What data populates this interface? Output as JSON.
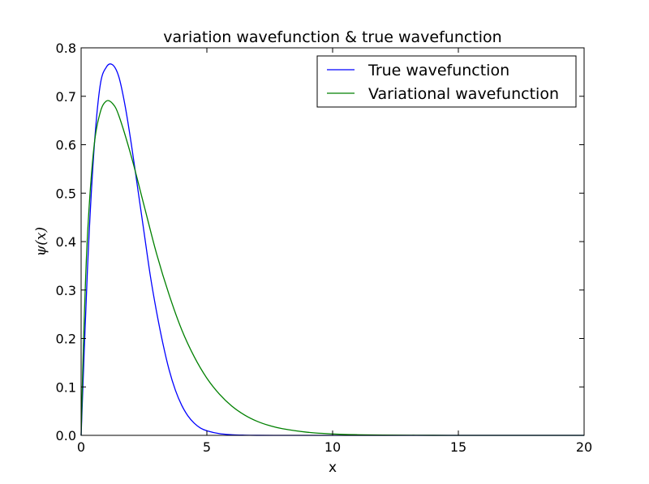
{
  "chart_data": {
    "type": "line",
    "title": "variation wavefunction & true wavefunction",
    "xlabel": "x",
    "ylabel": "ψ(x)",
    "xlim": [
      0,
      20
    ],
    "ylim": [
      0,
      0.8
    ],
    "xticks": [
      0,
      5,
      10,
      15,
      20
    ],
    "xtick_labels": [
      "0",
      "5",
      "10",
      "15",
      "20"
    ],
    "yticks": [
      0.0,
      0.1,
      0.2,
      0.3,
      0.4,
      0.5,
      0.6,
      0.7,
      0.8
    ],
    "ytick_labels": [
      "0.0",
      "0.1",
      "0.2",
      "0.3",
      "0.4",
      "0.5",
      "0.6",
      "0.7",
      "0.8"
    ],
    "legend_position": "top-right",
    "grid": false,
    "series": [
      {
        "name": "True wavefunction",
        "color": "#0000ff",
        "x": [
          0,
          0.25,
          0.5,
          0.75,
          1.0,
          1.25,
          1.5,
          1.75,
          2.0,
          2.25,
          2.5,
          2.75,
          3.0,
          3.25,
          3.5,
          3.75,
          4.0,
          4.25,
          4.5,
          4.75,
          5.0,
          5.5,
          6.0,
          6.5,
          7.0,
          8.0,
          9.0,
          10.0,
          12.0,
          15.0,
          20.0
        ],
        "y": [
          0.0,
          0.34,
          0.58,
          0.72,
          0.76,
          0.765,
          0.74,
          0.68,
          0.6,
          0.51,
          0.42,
          0.33,
          0.255,
          0.19,
          0.135,
          0.093,
          0.062,
          0.04,
          0.025,
          0.015,
          0.0095,
          0.0035,
          0.0012,
          0.0004,
          0.00013,
          1e-05,
          0.0,
          0.0,
          0.0,
          0.0,
          0.0
        ]
      },
      {
        "name": "Variational wavefunction",
        "color": "#008000",
        "x": [
          0,
          0.1,
          0.25,
          0.5,
          0.75,
          1.0,
          1.25,
          1.5,
          2.0,
          2.5,
          3.0,
          3.5,
          4.0,
          4.5,
          5.0,
          5.5,
          6.0,
          6.5,
          7.0,
          7.5,
          8.0,
          9.0,
          10.0,
          11.0,
          12.0,
          14.0,
          16.0,
          20.0
        ],
        "y": [
          0.0,
          0.2,
          0.41,
          0.59,
          0.665,
          0.69,
          0.685,
          0.66,
          0.575,
          0.475,
          0.375,
          0.29,
          0.218,
          0.162,
          0.118,
          0.085,
          0.06,
          0.042,
          0.029,
          0.02,
          0.0138,
          0.0064,
          0.0029,
          0.0013,
          0.0006,
          0.00012,
          2e-05,
          0.0
        ]
      }
    ]
  }
}
